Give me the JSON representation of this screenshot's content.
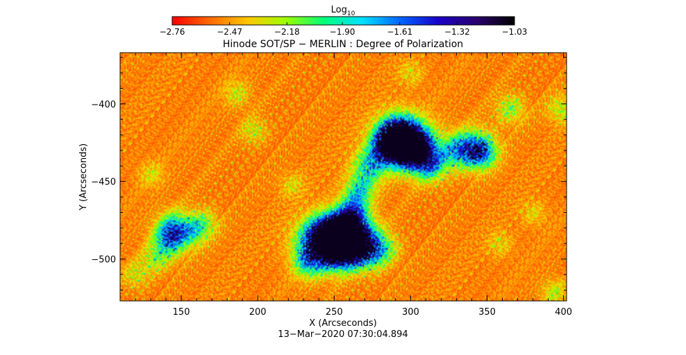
{
  "chart_data": {
    "type": "heatmap",
    "title": "Hinode SOT/SP − MERLIN : Degree of Polarization",
    "xlabel": "X (Arcseconds)",
    "ylabel": "Y (Arcseconds)",
    "timestamp": "13−Mar−2020 07:30:04.894",
    "xlim": [
      110,
      402
    ],
    "ylim": [
      -527,
      -367
    ],
    "x_ticks": [
      150,
      200,
      250,
      300,
      350,
      400
    ],
    "y_ticks": [
      -400,
      -450,
      -500
    ],
    "x_tick_labels": [
      "150",
      "200",
      "250",
      "300",
      "350",
      "400"
    ],
    "y_tick_labels": [
      "−400",
      "−450",
      "−500"
    ],
    "colorbar": {
      "label_base": "Log",
      "label_sub": "10",
      "scale": "log10",
      "range": [
        -2.76,
        -1.03
      ],
      "ticks": [
        -2.76,
        -2.47,
        -2.18,
        -1.9,
        -1.61,
        -1.32,
        -1.03
      ],
      "tick_labels": [
        "−2.76",
        "−2.47",
        "−2.18",
        "−1.90",
        "−1.61",
        "−1.32",
        "−1.03"
      ],
      "colors": [
        "#ff0000",
        "#ff6a00",
        "#ffc800",
        "#9cff00",
        "#00ff7a",
        "#00e0ff",
        "#0064ff",
        "#1a00c8",
        "#2a006e",
        "#000000"
      ]
    },
    "background_color": "#ff6a10",
    "hotspots": [
      {
        "x": 297,
        "y": -425,
        "strength": 1.0
      },
      {
        "x": 290,
        "y": -420,
        "strength": 0.8
      },
      {
        "x": 304,
        "y": -430,
        "strength": 0.7
      },
      {
        "x": 283,
        "y": -428,
        "strength": 0.55
      },
      {
        "x": 272,
        "y": -440,
        "strength": 0.5
      },
      {
        "x": 266,
        "y": -455,
        "strength": 0.45
      },
      {
        "x": 262,
        "y": -468,
        "strength": 0.45
      },
      {
        "x": 313,
        "y": -440,
        "strength": 0.45
      },
      {
        "x": 330,
        "y": -430,
        "strength": 0.55
      },
      {
        "x": 343,
        "y": -428,
        "strength": 0.6
      },
      {
        "x": 346,
        "y": -432,
        "strength": 0.4
      },
      {
        "x": 240,
        "y": -490,
        "strength": 1.0
      },
      {
        "x": 247,
        "y": -482,
        "strength": 0.7
      },
      {
        "x": 256,
        "y": -488,
        "strength": 0.7
      },
      {
        "x": 260,
        "y": -478,
        "strength": 0.6
      },
      {
        "x": 263,
        "y": -496,
        "strength": 0.55
      },
      {
        "x": 270,
        "y": -486,
        "strength": 0.55
      },
      {
        "x": 252,
        "y": -496,
        "strength": 0.5
      },
      {
        "x": 232,
        "y": -503,
        "strength": 0.35
      },
      {
        "x": 275,
        "y": -498,
        "strength": 0.35
      },
      {
        "x": 283,
        "y": -493,
        "strength": 0.35
      },
      {
        "x": 145,
        "y": -480,
        "strength": 0.55
      },
      {
        "x": 142,
        "y": -488,
        "strength": 0.5
      },
      {
        "x": 158,
        "y": -482,
        "strength": 0.35
      },
      {
        "x": 165,
        "y": -476,
        "strength": 0.3
      },
      {
        "x": 133,
        "y": -500,
        "strength": 0.3
      },
      {
        "x": 365,
        "y": -403,
        "strength": 0.35
      },
      {
        "x": 398,
        "y": -403,
        "strength": 0.3
      },
      {
        "x": 197,
        "y": -417,
        "strength": 0.25
      },
      {
        "x": 120,
        "y": -510,
        "strength": 0.25
      },
      {
        "x": 186,
        "y": -393,
        "strength": 0.25
      },
      {
        "x": 300,
        "y": -380,
        "strength": 0.2
      },
      {
        "x": 393,
        "y": -521,
        "strength": 0.25
      },
      {
        "x": 358,
        "y": -490,
        "strength": 0.2
      },
      {
        "x": 222,
        "y": -452,
        "strength": 0.2
      },
      {
        "x": 380,
        "y": -470,
        "strength": 0.2
      },
      {
        "x": 130,
        "y": -445,
        "strength": 0.2
      }
    ]
  }
}
